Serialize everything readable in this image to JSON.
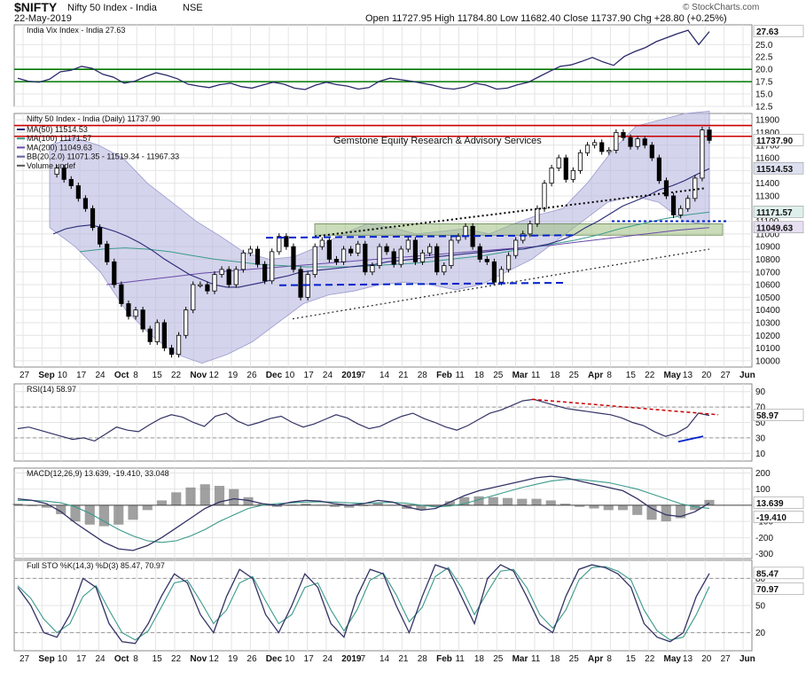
{
  "header": {
    "symbol": "$NIFTY",
    "name": "Nifty 50 Index - India",
    "exchange": "NSE",
    "date": "22-May-2019",
    "ohlc": "Open 11727.95  High 11784.80  Low 11682.40  Close 11737.90  Chg +28.80 (+0.25%)",
    "credit": "© StockCharts.com"
  },
  "watermark": "Gemstone Equity Research & Advisory Services",
  "colors": {
    "panel_bg": "#ffffff",
    "price": "#000000",
    "ma50": "#2a2a7a",
    "ma100": "#3a9a8a",
    "ma200": "#6a4aaa",
    "bb_fill": "#b8b8e0",
    "red_line": "#cc0000",
    "green_line": "#007700",
    "blue_dash": "#0022cc",
    "consolidation": "#9fbf7f",
    "rsi": "#333366",
    "macd": "#333366",
    "signal": "#3a9a8a",
    "hist": "#777777"
  },
  "x_axis_labels": [
    "27",
    "Sep",
    "10",
    "17",
    "24",
    "Oct",
    "8",
    "15",
    "22",
    "Nov",
    "12",
    "19",
    "26",
    "Dec",
    "10",
    "17",
    "24",
    "2019",
    "7",
    "14",
    "21",
    "28",
    "Feb",
    "11",
    "18",
    "25",
    "Mar",
    "11",
    "18",
    "25",
    "Apr",
    "8",
    "15",
    "22",
    "May",
    "13",
    "20",
    "27",
    "Jun"
  ],
  "chart_data": [
    {
      "panel": "vix",
      "type": "line",
      "title": "India Vix Index - India 27.63",
      "last_label": "27.63",
      "ylim": [
        12.5,
        29
      ],
      "yticks": [
        "25.0",
        "22.5",
        "20.0",
        "17.5",
        "15.0",
        "12.5"
      ],
      "hlines": [
        20.0,
        17.5
      ],
      "series": [
        {
          "name": "India Vix Index - India",
          "values": [
            18.2,
            17.6,
            17.4,
            18.0,
            19.5,
            19.8,
            20.6,
            20.2,
            19.0,
            18.4,
            17.2,
            17.6,
            18.5,
            19.3,
            18.8,
            18.1,
            17.0,
            16.6,
            16.3,
            16.9,
            17.2,
            16.5,
            16.2,
            16.8,
            17.4,
            17.0,
            16.2,
            15.9,
            16.8,
            17.4,
            16.9,
            16.6,
            16.0,
            16.3,
            17.6,
            18.2,
            17.9,
            17.6,
            17.2,
            16.8,
            16.2,
            16.0,
            16.4,
            17.2,
            16.8,
            16.0,
            16.2,
            16.9,
            17.4,
            18.5,
            19.6,
            20.6,
            20.9,
            21.6,
            22.4,
            21.5,
            20.8,
            22.6,
            23.6,
            24.4,
            25.6,
            26.4,
            27.2,
            27.9,
            25.0,
            27.63
          ]
        }
      ]
    },
    {
      "panel": "price",
      "type": "candlestick",
      "title": "Nifty 50 Index - India (Daily) 11737.90",
      "legend": [
        "MA(50) 11514.53",
        "MA(100) 11171.57",
        "MA(200) 11049.63",
        "BB(20,2.0) 11071.35 - 11519.34 - 11967.33",
        "Volume undef"
      ],
      "right_labels": [
        "11737.90",
        "11514.53",
        "11171.57",
        "11049.63"
      ],
      "ylim": [
        9950,
        11950
      ],
      "yticks": [
        "11900",
        "11800",
        "11700",
        "11600",
        "11500",
        "11400",
        "11300",
        "11200",
        "11100",
        "11000",
        "10900",
        "10800",
        "10700",
        "10600",
        "10500",
        "10400",
        "10300",
        "10200",
        "10100",
        "10000"
      ],
      "close": [
        11470,
        11520,
        11430,
        11380,
        11280,
        11200,
        11050,
        10920,
        10780,
        10600,
        10450,
        10350,
        10400,
        10250,
        10150,
        10300,
        10100,
        10050,
        10200,
        10400,
        10600,
        10600,
        10550,
        10680,
        10720,
        10600,
        10720,
        10850,
        10880,
        10760,
        10630,
        10860,
        10980,
        10900,
        10720,
        10500,
        10680,
        10900,
        10950,
        10800,
        10780,
        10880,
        10850,
        10920,
        10700,
        10750,
        10900,
        10860,
        10760,
        10880,
        10950,
        10780,
        10850,
        10900,
        10700,
        10750,
        10950,
        10980,
        11060,
        10900,
        10800,
        10780,
        10620,
        10720,
        10830,
        10950,
        11000,
        11080,
        11200,
        11400,
        11520,
        11600,
        11430,
        11500,
        11640,
        11700,
        11720,
        11650,
        11660,
        11800,
        11760,
        11690,
        11750,
        11700,
        11600,
        11420,
        11300,
        11150,
        11200,
        11280,
        11440,
        11820,
        11737.9
      ],
      "ma50": [
        11000,
        11040,
        11060,
        11070,
        11050,
        11020,
        10980,
        10930,
        10870,
        10800,
        10740,
        10680,
        10640,
        10600,
        10580,
        10580,
        10600,
        10620,
        10650,
        10670,
        10700,
        10710,
        10720,
        10730,
        10740,
        10750,
        10760,
        10780,
        10790,
        10800,
        10810,
        10820,
        10830,
        10840,
        10850,
        10860,
        10870,
        10880,
        10880,
        10900,
        10920,
        10950,
        10990,
        11050,
        11100,
        11160,
        11220,
        11260,
        11300,
        11350,
        11380,
        11420,
        11470,
        11514.53
      ],
      "ma100": [
        10860,
        10880,
        10890,
        10880,
        10860,
        10830,
        10800,
        10780,
        10760,
        10750,
        10740,
        10740,
        10740,
        10750,
        10760,
        10770,
        10790,
        10810,
        10830,
        10860,
        10890,
        10920,
        10950,
        10990,
        11040,
        11080,
        11120,
        11150,
        11171.57
      ],
      "ma200": [
        10600,
        10630,
        10660,
        10690,
        10710,
        10730,
        10750,
        10770,
        10790,
        10810,
        10830,
        10850,
        10870,
        10890,
        10910,
        10940,
        10970,
        11000,
        11030,
        11049.63
      ],
      "resistance": [
        11855,
        11770
      ],
      "bb_upper": [
        11700,
        11760,
        11700,
        11600,
        11400,
        11250,
        11100,
        10980,
        10850,
        10800,
        10820,
        10900,
        11000,
        11080,
        11050,
        11000,
        11020,
        11040,
        11000,
        11080,
        11150,
        11200,
        11400,
        11650,
        11850,
        11900,
        11950,
        11967.33
      ],
      "bb_lower": [
        11050,
        10900,
        10700,
        10400,
        10200,
        10050,
        9980,
        10050,
        10150,
        10300,
        10450,
        10520,
        10550,
        10600,
        10620,
        10600,
        10560,
        10600,
        10700,
        10800,
        10950,
        11100,
        11250,
        11300,
        11250,
        11100,
        11071.35
      ]
    },
    {
      "panel": "rsi",
      "type": "line",
      "title": "RSI(14) 58.97",
      "last_label": "58.97",
      "ylim": [
        0,
        100
      ],
      "yticks": [
        "90",
        "70",
        "50",
        "30",
        "10"
      ],
      "hlines": [
        70,
        30
      ],
      "series": [
        {
          "name": "RSI(14)",
          "values": [
            42,
            44,
            40,
            36,
            32,
            28,
            30,
            26,
            35,
            44,
            40,
            38,
            47,
            55,
            60,
            57,
            50,
            45,
            58,
            62,
            52,
            46,
            50,
            55,
            58,
            50,
            44,
            48,
            54,
            60,
            56,
            48,
            42,
            45,
            52,
            58,
            62,
            55,
            50,
            44,
            40,
            46,
            54,
            62,
            66,
            72,
            78,
            80,
            76,
            72,
            68,
            66,
            64,
            62,
            60,
            56,
            50,
            46,
            38,
            32,
            36,
            44,
            62,
            58.97
          ]
        }
      ]
    },
    {
      "panel": "macd",
      "type": "line",
      "title": "MACD(12,26,9) 13.639, -19.410, 33.048",
      "right_labels": [
        "13.639",
        "-19.410"
      ],
      "ylim": [
        -330,
        230
      ],
      "yticks": [
        "200",
        "100",
        "0",
        "-100",
        "-200",
        "-300"
      ],
      "series": [
        {
          "name": "MACD",
          "values": [
            40,
            30,
            10,
            -40,
            -110,
            -170,
            -230,
            -270,
            -280,
            -250,
            -200,
            -140,
            -80,
            -20,
            20,
            40,
            30,
            10,
            0,
            20,
            30,
            25,
            10,
            0,
            10,
            30,
            20,
            -10,
            -30,
            -20,
            20,
            60,
            90,
            110,
            130,
            150,
            170,
            180,
            170,
            150,
            130,
            110,
            90,
            40,
            -20,
            -60,
            -70,
            -40,
            13.639
          ]
        },
        {
          "name": "Signal",
          "values": [
            30,
            30,
            25,
            15,
            -10,
            -50,
            -100,
            -150,
            -190,
            -220,
            -230,
            -220,
            -190,
            -150,
            -100,
            -60,
            -20,
            0,
            10,
            15,
            20,
            22,
            20,
            15,
            12,
            15,
            18,
            12,
            0,
            -10,
            -5,
            10,
            35,
            60,
            85,
            110,
            130,
            150,
            160,
            160,
            150,
            140,
            120,
            100,
            70,
            40,
            10,
            -10,
            -19.41
          ]
        }
      ]
    },
    {
      "panel": "sto",
      "type": "line",
      "title": "Full STO %K(14,3) %D(3) 85.47, 70.97",
      "right_labels": [
        "85.47",
        "70.97"
      ],
      "ylim": [
        0,
        100
      ],
      "yticks": [
        "80",
        "50",
        "20"
      ],
      "hlines": [
        80,
        20
      ],
      "series": [
        {
          "name": "%K",
          "values": [
            70,
            50,
            20,
            15,
            40,
            80,
            70,
            30,
            10,
            8,
            30,
            60,
            85,
            75,
            40,
            20,
            60,
            90,
            80,
            40,
            20,
            50,
            85,
            70,
            30,
            15,
            60,
            90,
            85,
            50,
            20,
            60,
            95,
            90,
            60,
            30,
            80,
            95,
            88,
            60,
            30,
            20,
            60,
            90,
            95,
            92,
            85,
            70,
            30,
            15,
            10,
            20,
            60,
            85.47
          ]
        },
        {
          "name": "%D",
          "values": [
            72,
            58,
            35,
            20,
            30,
            60,
            72,
            45,
            20,
            12,
            22,
            48,
            75,
            78,
            55,
            30,
            45,
            75,
            82,
            55,
            30,
            40,
            70,
            75,
            45,
            22,
            45,
            78,
            86,
            62,
            32,
            48,
            82,
            92,
            70,
            40,
            65,
            88,
            90,
            70,
            40,
            25,
            45,
            78,
            92,
            93,
            88,
            78,
            45,
            22,
            12,
            15,
            40,
            70.97
          ]
        }
      ]
    }
  ]
}
